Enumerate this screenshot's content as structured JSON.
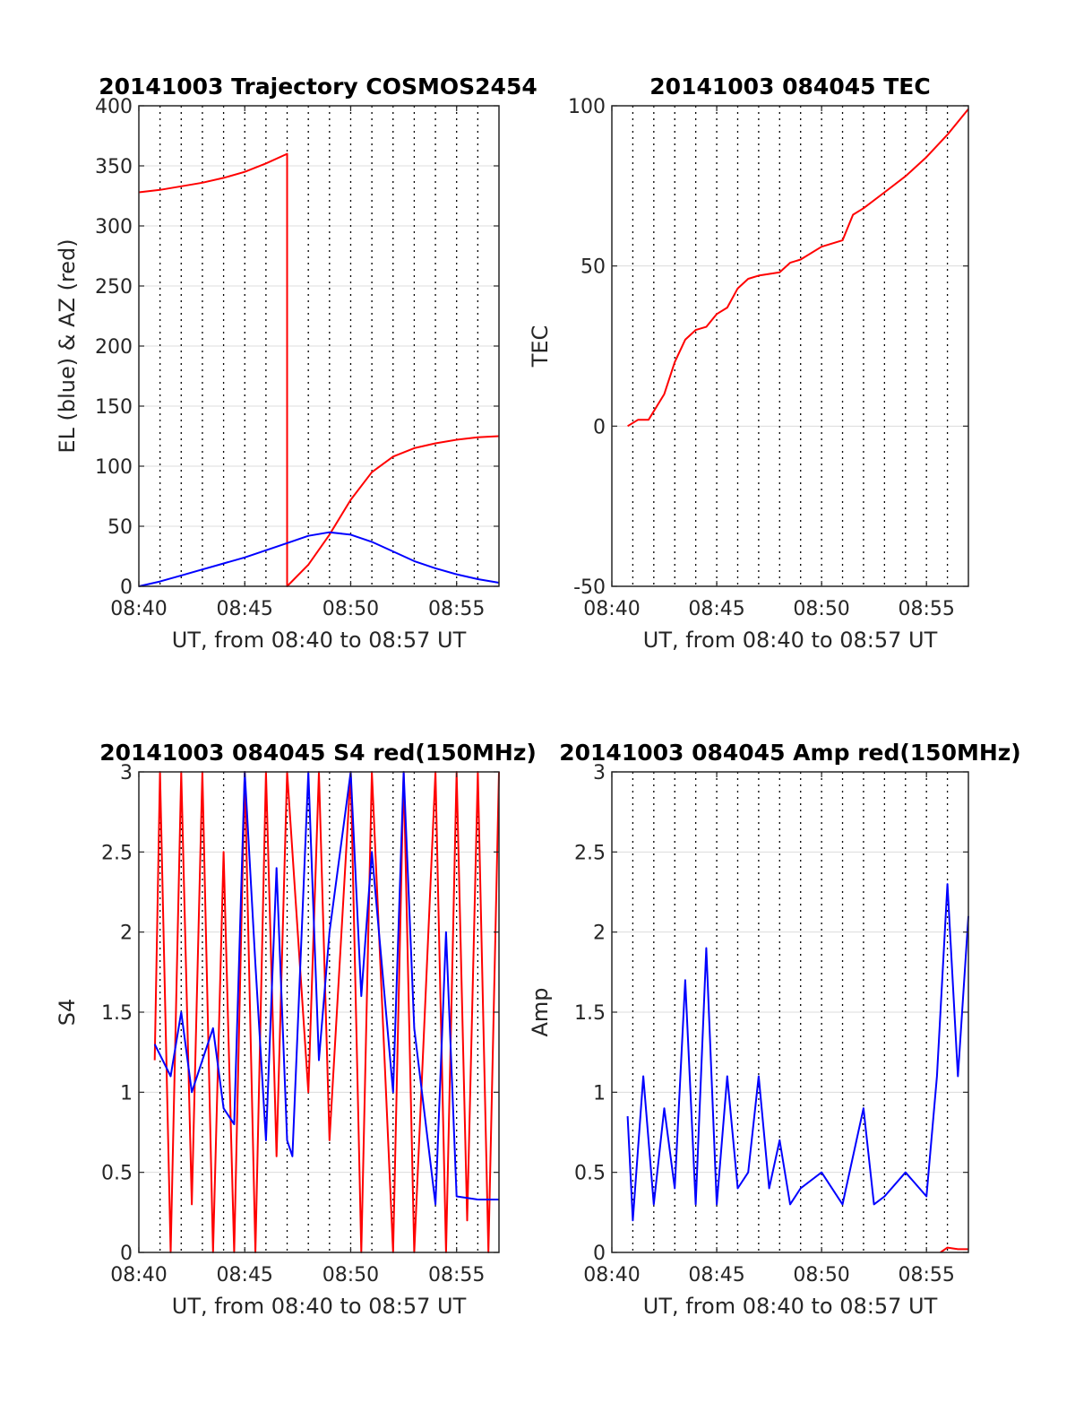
{
  "chart_data": [
    {
      "type": "line",
      "title": "20141003 Trajectory COSMOS2454",
      "xlabel": "UT, from 08:40 to 08:57 UT",
      "ylabel": "EL (blue) & AZ (red)",
      "xlim": [
        "08:40",
        "08:57"
      ],
      "ylim": [
        0,
        400
      ],
      "xticks": [
        "08:40",
        "08:45",
        "08:50",
        "08:55"
      ],
      "yticks": [
        "0",
        "50",
        "100",
        "150",
        "200",
        "250",
        "300",
        "350",
        "400"
      ],
      "grid": true,
      "series": [
        {
          "color": "#ff0000",
          "points": [
            [
              "08:40",
              328
            ],
            [
              "08:41",
              330
            ],
            [
              "08:42",
              333
            ],
            [
              "08:43",
              336
            ],
            [
              "08:44",
              340
            ],
            [
              "08:45",
              345
            ],
            [
              "08:46",
              352
            ],
            [
              "08:47",
              360
            ],
            [
              "08:47",
              0
            ],
            [
              "08:48",
              18
            ],
            [
              "08:49",
              43
            ],
            [
              "08:50",
              72
            ],
            [
              "08:51",
              95
            ],
            [
              "08:52",
              108
            ],
            [
              "08:53",
              115
            ],
            [
              "08:54",
              119
            ],
            [
              "08:55",
              122
            ],
            [
              "08:56",
              124
            ],
            [
              "08:57",
              125
            ]
          ]
        },
        {
          "color": "#0000ff",
          "points": [
            [
              "08:40",
              0
            ],
            [
              "08:41",
              4
            ],
            [
              "08:42",
              9
            ],
            [
              "08:43",
              14
            ],
            [
              "08:44",
              19
            ],
            [
              "08:45",
              24
            ],
            [
              "08:46",
              30
            ],
            [
              "08:47",
              36
            ],
            [
              "08:48",
              42
            ],
            [
              "08:49",
              45
            ],
            [
              "08:50",
              43
            ],
            [
              "08:51",
              37
            ],
            [
              "08:52",
              29
            ],
            [
              "08:53",
              21
            ],
            [
              "08:54",
              15
            ],
            [
              "08:55",
              10
            ],
            [
              "08:56",
              6
            ],
            [
              "08:57",
              3
            ]
          ]
        }
      ]
    },
    {
      "type": "line",
      "title": "20141003 084045 TEC",
      "xlabel": "UT, from 08:40 to 08:57 UT",
      "ylabel": "TEC",
      "xlim": [
        "08:40",
        "08:57"
      ],
      "ylim": [
        -50,
        100
      ],
      "xticks": [
        "08:40",
        "08:45",
        "08:50",
        "08:55"
      ],
      "yticks": [
        "-50",
        "0",
        "50",
        "100"
      ],
      "grid": true,
      "series": [
        {
          "color": "#ff0000",
          "points": [
            [
              "08:40:45",
              0
            ],
            [
              "08:41:15",
              2
            ],
            [
              "08:41:45",
              2
            ],
            [
              "08:42:30",
              10
            ],
            [
              "08:43",
              20
            ],
            [
              "08:43:30",
              27
            ],
            [
              "08:44",
              30
            ],
            [
              "08:44:30",
              31
            ],
            [
              "08:45",
              35
            ],
            [
              "08:45:30",
              37
            ],
            [
              "08:46",
              43
            ],
            [
              "08:46:30",
              46
            ],
            [
              "08:47",
              47
            ],
            [
              "08:48",
              48
            ],
            [
              "08:48:30",
              51
            ],
            [
              "08:49",
              52
            ],
            [
              "08:50",
              56
            ],
            [
              "08:51",
              58
            ],
            [
              "08:51:30",
              66
            ],
            [
              "08:52",
              68
            ],
            [
              "08:53",
              73
            ],
            [
              "08:54",
              78
            ],
            [
              "08:55",
              84
            ],
            [
              "08:56",
              91
            ],
            [
              "08:57",
              99
            ]
          ]
        }
      ]
    },
    {
      "type": "line",
      "title": "20141003 084045 S4 red(150MHz)",
      "xlabel": "UT, from 08:40 to 08:57 UT",
      "ylabel": "S4",
      "xlim": [
        "08:40",
        "08:57"
      ],
      "ylim": [
        0,
        3
      ],
      "xticks": [
        "08:40",
        "08:45",
        "08:50",
        "08:55"
      ],
      "yticks": [
        "0",
        "0.5",
        "1",
        "1.5",
        "2",
        "2.5",
        "3"
      ],
      "grid": true,
      "series": [
        {
          "color": "#ff0000",
          "points": [
            [
              "08:40:45",
              1.2
            ],
            [
              "08:41",
              3.0
            ],
            [
              "08:41:30",
              0.0
            ],
            [
              "08:42",
              3.0
            ],
            [
              "08:42:30",
              0.3
            ],
            [
              "08:43",
              3.0
            ],
            [
              "08:43:30",
              0.0
            ],
            [
              "08:44",
              2.5
            ],
            [
              "08:44:30",
              0.0
            ],
            [
              "08:45",
              3.0
            ],
            [
              "08:45:30",
              0.0
            ],
            [
              "08:46",
              3.0
            ],
            [
              "08:46:30",
              0.6
            ],
            [
              "08:47",
              3.0
            ],
            [
              "08:48",
              1.0
            ],
            [
              "08:48:30",
              3.0
            ],
            [
              "08:49",
              0.7
            ],
            [
              "08:50",
              3.0
            ],
            [
              "08:50:30",
              0.0
            ],
            [
              "08:51",
              3.0
            ],
            [
              "08:52",
              0.0
            ],
            [
              "08:52:30",
              3.0
            ],
            [
              "08:53",
              0.0
            ],
            [
              "08:54",
              3.0
            ],
            [
              "08:54:30",
              0.0
            ],
            [
              "08:55",
              3.0
            ],
            [
              "08:55:30",
              0.2
            ],
            [
              "08:56",
              3.0
            ],
            [
              "08:56:30",
              0.0
            ],
            [
              "08:57",
              3.0
            ]
          ]
        },
        {
          "color": "#0000ff",
          "points": [
            [
              "08:40:45",
              1.3
            ],
            [
              "08:41:30",
              1.1
            ],
            [
              "08:42",
              1.5
            ],
            [
              "08:42:30",
              1.0
            ],
            [
              "08:43",
              1.2
            ],
            [
              "08:43:30",
              1.4
            ],
            [
              "08:44",
              0.9
            ],
            [
              "08:44:30",
              0.8
            ],
            [
              "08:45",
              3.0
            ],
            [
              "08:45:30",
              1.8
            ],
            [
              "08:46",
              0.7
            ],
            [
              "08:46:30",
              2.4
            ],
            [
              "08:47",
              0.7
            ],
            [
              "08:47:15",
              0.6
            ],
            [
              "08:48",
              3.0
            ],
            [
              "08:48:30",
              1.2
            ],
            [
              "08:49",
              2.0
            ],
            [
              "08:50",
              3.0
            ],
            [
              "08:50:30",
              1.6
            ],
            [
              "08:51",
              2.5
            ],
            [
              "08:52",
              1.0
            ],
            [
              "08:52:30",
              3.0
            ],
            [
              "08:53",
              1.4
            ],
            [
              "08:54",
              0.3
            ],
            [
              "08:54:30",
              2.0
            ],
            [
              "08:55",
              0.35
            ],
            [
              "08:56",
              0.33
            ],
            [
              "08:57",
              0.33
            ]
          ]
        }
      ]
    },
    {
      "type": "line",
      "title": "20141003 084045 Amp red(150MHz)",
      "xlabel": "UT, from 08:40 to 08:57 UT",
      "ylabel": "Amp",
      "xlim": [
        "08:40",
        "08:57"
      ],
      "ylim": [
        0,
        3
      ],
      "xticks": [
        "08:40",
        "08:45",
        "08:50",
        "08:55"
      ],
      "yticks": [
        "0",
        "0.5",
        "1",
        "1.5",
        "2",
        "2.5",
        "3"
      ],
      "grid": true,
      "series": [
        {
          "color": "#0000ff",
          "points": [
            [
              "08:40:45",
              0.85
            ],
            [
              "08:41",
              0.2
            ],
            [
              "08:41:30",
              1.1
            ],
            [
              "08:42",
              0.3
            ],
            [
              "08:42:30",
              0.9
            ],
            [
              "08:43",
              0.4
            ],
            [
              "08:43:30",
              1.7
            ],
            [
              "08:44",
              0.3
            ],
            [
              "08:44:30",
              1.9
            ],
            [
              "08:45",
              0.3
            ],
            [
              "08:45:30",
              1.1
            ],
            [
              "08:46",
              0.4
            ],
            [
              "08:46:30",
              0.5
            ],
            [
              "08:47",
              1.1
            ],
            [
              "08:47:30",
              0.4
            ],
            [
              "08:48",
              0.7
            ],
            [
              "08:48:30",
              0.3
            ],
            [
              "08:49",
              0.4
            ],
            [
              "08:50",
              0.5
            ],
            [
              "08:51",
              0.3
            ],
            [
              "08:52",
              0.9
            ],
            [
              "08:52:30",
              0.3
            ],
            [
              "08:53",
              0.35
            ],
            [
              "08:54",
              0.5
            ],
            [
              "08:55",
              0.35
            ],
            [
              "08:55:30",
              1.1
            ],
            [
              "08:56",
              2.3
            ],
            [
              "08:56:30",
              1.1
            ],
            [
              "08:57",
              2.1
            ]
          ]
        },
        {
          "color": "#ff0000",
          "points": [
            [
              "08:55:40",
              0.0
            ],
            [
              "08:56",
              0.03
            ],
            [
              "08:56:30",
              0.02
            ],
            [
              "08:57",
              0.02
            ]
          ]
        }
      ]
    }
  ]
}
